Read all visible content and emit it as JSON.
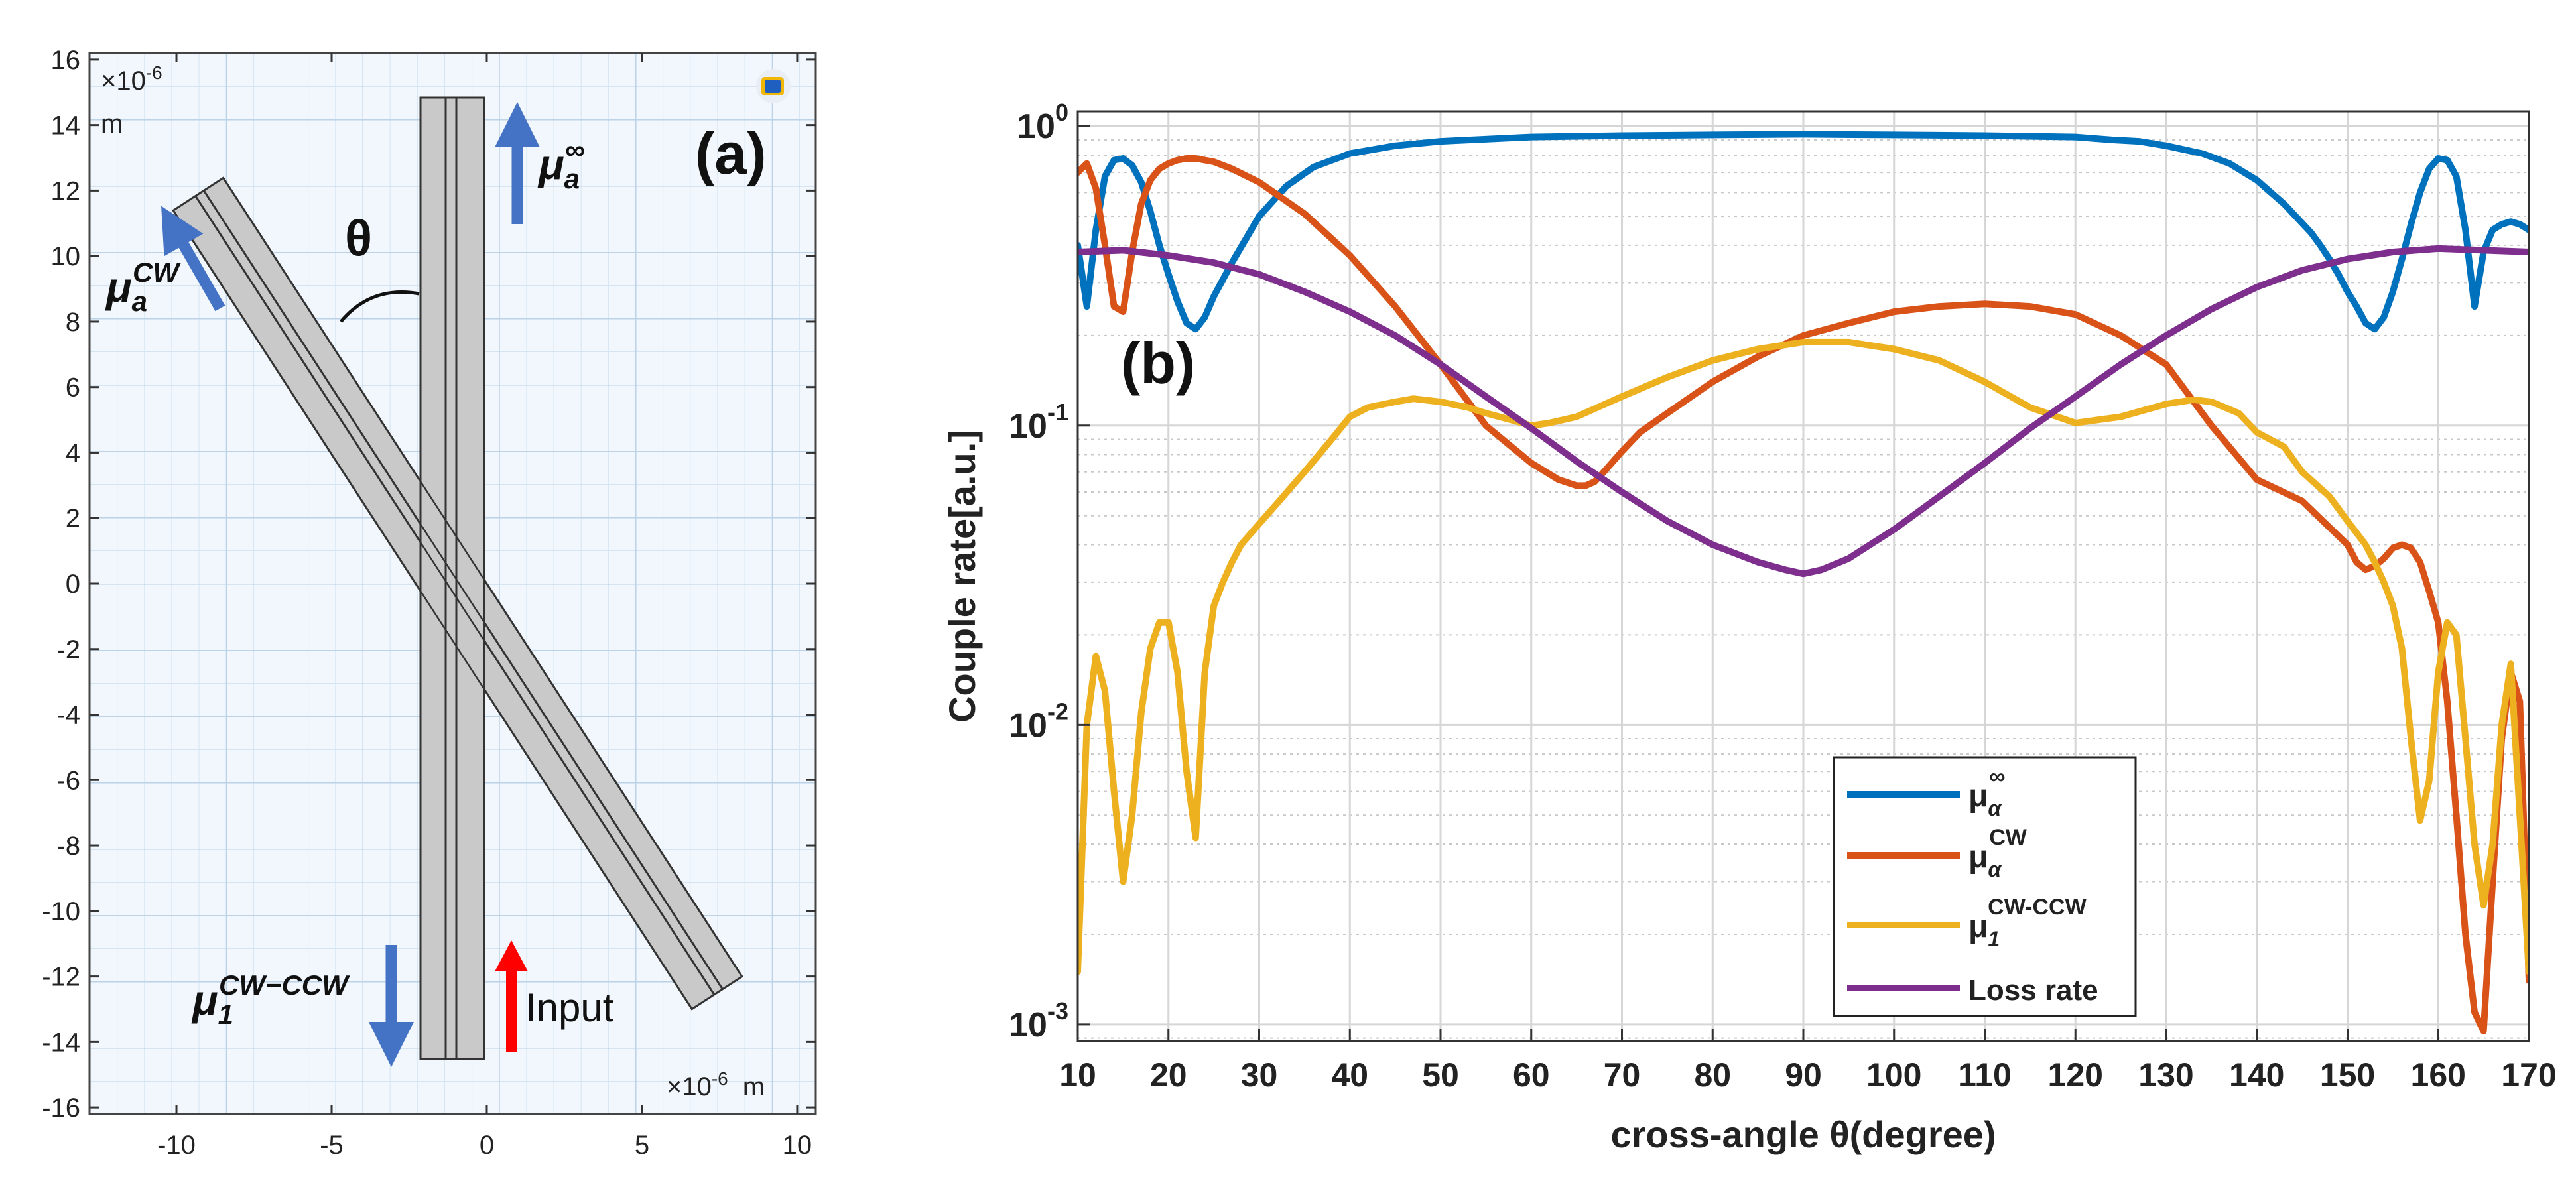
{
  "panel_a": {
    "label": "(a)",
    "axis_unit_exp_top": "×10",
    "axis_unit_exp_top_sup": "-6",
    "axis_unit_m_top": "m",
    "axis_unit_exp_bottom": "×10",
    "axis_unit_exp_bottom_sup": "-6",
    "axis_unit_m_bottom": "m",
    "x_ticks": [
      "-10",
      "-5",
      "0",
      "5",
      "10"
    ],
    "y_ticks": [
      "16",
      "14",
      "12",
      "10",
      "8",
      "6",
      "4",
      "2",
      "0",
      "-2",
      "-4",
      "-6",
      "-8",
      "-10",
      "-12",
      "-14",
      "-16"
    ],
    "theta_label": "θ",
    "mu_inf_base": "μ",
    "mu_inf_sub": "a",
    "mu_inf_sup": "∞",
    "mu_cw_base": "μ",
    "mu_cw_sub": "a",
    "mu_cw_sup": "CW",
    "mu_1_base": "μ",
    "mu_1_sub": "1",
    "mu_1_sup": "CW−CCW",
    "input_label": "Input",
    "arrow_color_blue": "#4472c4",
    "arrow_color_red": "#ff0000"
  },
  "chart_data": {
    "type": "line",
    "label": "(b)",
    "xlabel": "cross-angle θ(degree)",
    "ylabel": "Couple rate[a.u.]",
    "yscale": "log",
    "xlim": [
      10,
      170
    ],
    "ylim": [
      0.00088,
      1.12
    ],
    "x_ticks": [
      "10",
      "20",
      "30",
      "40",
      "50",
      "60",
      "70",
      "80",
      "90",
      "100",
      "110",
      "120",
      "130",
      "140",
      "150",
      "160",
      "170"
    ],
    "y_ticks": [
      {
        "base": "10",
        "exp": "0"
      },
      {
        "base": "10",
        "exp": "-1"
      },
      {
        "base": "10",
        "exp": "-2"
      },
      {
        "base": "10",
        "exp": "-3"
      }
    ],
    "grid": true,
    "legend_position": "bottom-right",
    "series": [
      {
        "name": "μ_α^∞",
        "legend_base": "μ",
        "legend_sub": "α",
        "legend_sup": "∞",
        "color": "#0072bd",
        "x": [
          10,
          11,
          12,
          13,
          14,
          15,
          16,
          17,
          18,
          19,
          20,
          21,
          22,
          23,
          24,
          25,
          27,
          30,
          33,
          36,
          40,
          45,
          50,
          60,
          70,
          80,
          90,
          100,
          110,
          120,
          124,
          127,
          130,
          134,
          137,
          140,
          143,
          146,
          147,
          148,
          149,
          150,
          151,
          152,
          153,
          154,
          155,
          156,
          157,
          158,
          159,
          160,
          161,
          162,
          163,
          164,
          165,
          166,
          167,
          168,
          169,
          170
        ],
        "y": [
          0.4,
          0.25,
          0.45,
          0.68,
          0.77,
          0.78,
          0.74,
          0.65,
          0.52,
          0.4,
          0.32,
          0.26,
          0.22,
          0.21,
          0.23,
          0.27,
          0.35,
          0.5,
          0.63,
          0.73,
          0.81,
          0.86,
          0.89,
          0.92,
          0.93,
          0.935,
          0.94,
          0.935,
          0.93,
          0.92,
          0.9,
          0.89,
          0.86,
          0.81,
          0.75,
          0.66,
          0.55,
          0.44,
          0.4,
          0.36,
          0.32,
          0.28,
          0.25,
          0.22,
          0.21,
          0.23,
          0.28,
          0.36,
          0.47,
          0.6,
          0.72,
          0.78,
          0.77,
          0.68,
          0.45,
          0.25,
          0.38,
          0.45,
          0.47,
          0.48,
          0.47,
          0.45
        ]
      },
      {
        "name": "μ_α^CW",
        "legend_base": "μ",
        "legend_sub": "α",
        "legend_sup": "CW",
        "color": "#d95319",
        "x": [
          10,
          11,
          12,
          13,
          14,
          15,
          16,
          17,
          18,
          19,
          20,
          21,
          22,
          23,
          24,
          25,
          27,
          30,
          35,
          40,
          45,
          50,
          55,
          60,
          63,
          65,
          66,
          67,
          68,
          70,
          72,
          75,
          80,
          85,
          90,
          95,
          100,
          105,
          110,
          115,
          120,
          125,
          130,
          135,
          140,
          145,
          150,
          151,
          152,
          153,
          154,
          155,
          156,
          157,
          158,
          159,
          160,
          161,
          162,
          163,
          164,
          165,
          166,
          167,
          168,
          169,
          170
        ],
        "y": [
          0.7,
          0.75,
          0.62,
          0.4,
          0.25,
          0.24,
          0.38,
          0.55,
          0.66,
          0.72,
          0.75,
          0.77,
          0.78,
          0.78,
          0.77,
          0.76,
          0.72,
          0.65,
          0.51,
          0.37,
          0.25,
          0.16,
          0.1,
          0.075,
          0.066,
          0.063,
          0.063,
          0.065,
          0.07,
          0.082,
          0.095,
          0.11,
          0.14,
          0.17,
          0.2,
          0.22,
          0.24,
          0.25,
          0.255,
          0.25,
          0.235,
          0.2,
          0.16,
          0.1,
          0.066,
          0.056,
          0.04,
          0.035,
          0.033,
          0.034,
          0.036,
          0.039,
          0.04,
          0.039,
          0.035,
          0.028,
          0.022,
          0.012,
          0.005,
          0.002,
          0.0011,
          0.00095,
          0.003,
          0.009,
          0.015,
          0.012,
          0.0014
        ]
      },
      {
        "name": "μ_1^CW-CCW",
        "legend_base": "μ",
        "legend_sub": "1",
        "legend_sup": "CW-CCW",
        "color": "#edb120",
        "x": [
          10,
          11,
          12,
          13,
          14,
          15,
          16,
          17,
          18,
          19,
          20,
          21,
          22,
          23,
          24,
          25,
          26,
          27,
          28,
          30,
          32,
          35,
          38,
          40,
          42,
          45,
          47,
          50,
          53,
          55,
          58,
          60,
          62,
          65,
          70,
          75,
          80,
          85,
          90,
          95,
          100,
          105,
          110,
          115,
          120,
          125,
          130,
          133,
          135,
          138,
          140,
          143,
          145,
          148,
          150,
          152,
          153,
          154,
          155,
          156,
          157,
          158,
          159,
          160,
          161,
          162,
          163,
          164,
          165,
          166,
          167,
          168,
          169,
          170
        ],
        "y": [
          0.0015,
          0.01,
          0.017,
          0.013,
          0.006,
          0.003,
          0.005,
          0.011,
          0.018,
          0.022,
          0.022,
          0.015,
          0.007,
          0.0042,
          0.015,
          0.025,
          0.03,
          0.035,
          0.04,
          0.047,
          0.055,
          0.07,
          0.09,
          0.107,
          0.115,
          0.12,
          0.123,
          0.12,
          0.115,
          0.11,
          0.104,
          0.1,
          0.102,
          0.107,
          0.125,
          0.145,
          0.165,
          0.18,
          0.19,
          0.19,
          0.18,
          0.165,
          0.14,
          0.115,
          0.102,
          0.107,
          0.118,
          0.122,
          0.12,
          0.11,
          0.095,
          0.085,
          0.07,
          0.058,
          0.048,
          0.04,
          0.035,
          0.03,
          0.025,
          0.018,
          0.009,
          0.0048,
          0.0065,
          0.015,
          0.022,
          0.02,
          0.009,
          0.004,
          0.0025,
          0.004,
          0.01,
          0.016,
          0.005,
          0.0015
        ]
      },
      {
        "name": "Loss rate",
        "legend_base": "Loss rate",
        "legend_sub": "",
        "legend_sup": "",
        "color": "#7e2f8e",
        "x": [
          10,
          15,
          20,
          25,
          30,
          35,
          40,
          45,
          50,
          55,
          60,
          65,
          70,
          75,
          80,
          85,
          88,
          90,
          92,
          95,
          100,
          105,
          110,
          115,
          120,
          125,
          130,
          135,
          140,
          145,
          150,
          155,
          160,
          165,
          170
        ],
        "y": [
          0.38,
          0.385,
          0.37,
          0.35,
          0.32,
          0.28,
          0.24,
          0.2,
          0.16,
          0.125,
          0.098,
          0.076,
          0.06,
          0.048,
          0.04,
          0.035,
          0.033,
          0.032,
          0.033,
          0.036,
          0.045,
          0.058,
          0.075,
          0.098,
          0.125,
          0.16,
          0.2,
          0.245,
          0.29,
          0.33,
          0.36,
          0.38,
          0.39,
          0.385,
          0.38
        ]
      }
    ]
  }
}
